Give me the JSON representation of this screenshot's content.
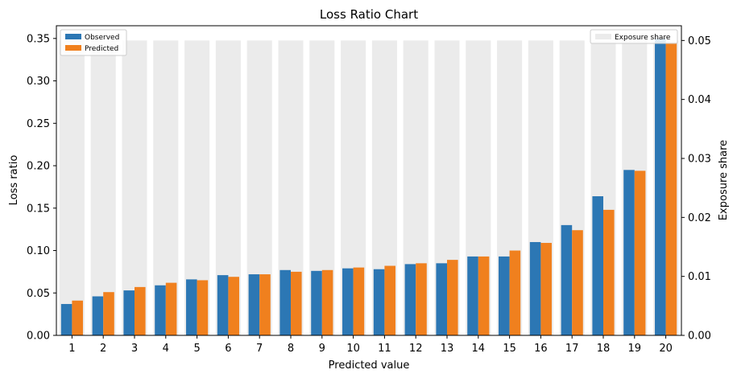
{
  "chart_data": {
    "type": "bar",
    "title": "Loss Ratio Chart",
    "xlabel": "Predicted value",
    "ylabel": "Loss ratio",
    "ylabel_right": "Exposure share",
    "categories": [
      "1",
      "2",
      "3",
      "4",
      "5",
      "6",
      "7",
      "8",
      "9",
      "10",
      "11",
      "12",
      "13",
      "14",
      "15",
      "16",
      "17",
      "18",
      "19",
      "20"
    ],
    "ylim": [
      0,
      0.365
    ],
    "ylim_right": [
      0,
      0.0525
    ],
    "yticks": [
      "0.00",
      "0.05",
      "0.10",
      "0.15",
      "0.20",
      "0.25",
      "0.30",
      "0.35"
    ],
    "yticks_right": [
      "0.00",
      "0.01",
      "0.02",
      "0.03",
      "0.04",
      "0.05"
    ],
    "series": [
      {
        "name": "Observed",
        "color": "#2c77b4",
        "axis": "left",
        "values": [
          0.037,
          0.046,
          0.053,
          0.059,
          0.066,
          0.071,
          0.072,
          0.077,
          0.076,
          0.079,
          0.078,
          0.084,
          0.085,
          0.093,
          0.093,
          0.11,
          0.13,
          0.164,
          0.195,
          0.35
        ]
      },
      {
        "name": "Predicted",
        "color": "#f0801e",
        "axis": "left",
        "values": [
          0.041,
          0.051,
          0.057,
          0.062,
          0.065,
          0.069,
          0.072,
          0.075,
          0.077,
          0.08,
          0.082,
          0.085,
          0.089,
          0.093,
          0.1,
          0.109,
          0.124,
          0.148,
          0.194,
          0.345
        ]
      },
      {
        "name": "Exposure share",
        "color": "#ebebeb",
        "axis": "right",
        "values": [
          0.05,
          0.05,
          0.05,
          0.05,
          0.05,
          0.05,
          0.05,
          0.05,
          0.05,
          0.05,
          0.05,
          0.05,
          0.05,
          0.05,
          0.05,
          0.05,
          0.05,
          0.05,
          0.05,
          0.05
        ]
      }
    ],
    "legend_left": [
      "Observed",
      "Predicted"
    ],
    "legend_right": [
      "Exposure share"
    ],
    "legend_left_placement": "top-left",
    "legend_right_placement": "top-right",
    "grid": false
  }
}
